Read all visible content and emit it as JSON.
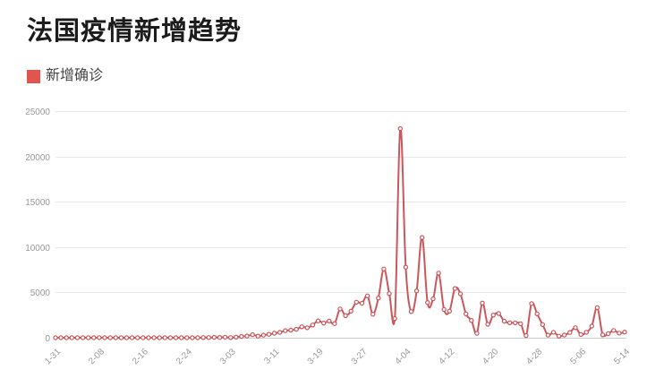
{
  "header": {
    "title": "法国疫情新增趋势"
  },
  "legend": {
    "label": "新增确诊",
    "color": "#e2544e"
  },
  "chart_data": {
    "type": "line",
    "title": "法国疫情新增趋势",
    "legend_position": "top-left",
    "grid": true,
    "smooth": true,
    "marker": "open-circle",
    "line_color": "#cb575c",
    "marker_fill": "#ffffff",
    "grid_color": "#e9e9e9",
    "axis_line_color": "#cccccc",
    "axis_text_color": "#999999",
    "ylim": [
      0,
      25000
    ],
    "y_ticks": [
      0,
      5000,
      10000,
      15000,
      20000,
      25000
    ],
    "x_tick_labels": [
      "1-31",
      "2-08",
      "2-16",
      "2-24",
      "3-03",
      "3-11",
      "3-19",
      "3-27",
      "4-04",
      "4-12",
      "4-20",
      "4-28",
      "5-06",
      "5-14"
    ],
    "x": [
      "1-31",
      "2-01",
      "2-02",
      "2-03",
      "2-04",
      "2-05",
      "2-06",
      "2-07",
      "2-08",
      "2-09",
      "2-10",
      "2-11",
      "2-12",
      "2-13",
      "2-14",
      "2-15",
      "2-16",
      "2-17",
      "2-18",
      "2-19",
      "2-20",
      "2-21",
      "2-22",
      "2-23",
      "2-24",
      "2-25",
      "2-26",
      "2-27",
      "2-28",
      "2-29",
      "3-01",
      "3-02",
      "3-03",
      "3-04",
      "3-05",
      "3-06",
      "3-07",
      "3-08",
      "3-09",
      "3-10",
      "3-11",
      "3-12",
      "3-13",
      "3-14",
      "3-15",
      "3-16",
      "3-17",
      "3-18",
      "3-19",
      "3-20",
      "3-21",
      "3-22",
      "3-23",
      "3-24",
      "3-25",
      "3-26",
      "3-27",
      "3-28",
      "3-29",
      "3-30",
      "3-31",
      "4-01",
      "4-02",
      "4-03",
      "4-04",
      "4-05",
      "4-06",
      "4-07",
      "4-08",
      "4-09",
      "4-10",
      "4-11",
      "4-12",
      "4-13",
      "4-14",
      "4-15",
      "4-16",
      "4-17",
      "4-18",
      "4-19",
      "4-20",
      "4-21",
      "4-22",
      "4-23",
      "4-24",
      "4-25",
      "4-26",
      "4-27",
      "4-28",
      "4-29",
      "4-30",
      "5-01",
      "5-02",
      "5-03",
      "5-04",
      "5-05",
      "5-06",
      "5-07",
      "5-08",
      "5-09",
      "5-10",
      "5-11",
      "5-12",
      "5-13",
      "5-14"
    ],
    "series": [
      {
        "name": "新增确诊",
        "values": [
          1,
          0,
          0,
          0,
          0,
          0,
          3,
          0,
          5,
          0,
          0,
          0,
          2,
          0,
          0,
          1,
          0,
          0,
          0,
          0,
          0,
          0,
          0,
          0,
          0,
          2,
          1,
          18,
          20,
          43,
          30,
          61,
          21,
          73,
          138,
          190,
          336,
          177,
          286,
          372,
          497,
          595,
          785,
          838,
          924,
          1210,
          1097,
          1404,
          1861,
          1617,
          1847,
          1559,
          3176,
          2444,
          2931,
          3922,
          3809,
          4611,
          2599,
          4376,
          7578,
          4861,
          2116,
          23060,
          7788,
          2886,
          5171,
          11059,
          3881,
          4286,
          7120,
          3114,
          2937,
          5429,
          4842,
          2633,
          1909,
          485,
          3824,
          1480,
          2489,
          2667,
          1827,
          1653,
          1645,
          1537,
          242,
          3764,
          2638,
          1449,
          289,
          604,
          166,
          297,
          576,
          1104,
          357,
          600,
          1288,
          3317,
          312,
          456,
          802,
          507,
          622
        ]
      }
    ]
  }
}
